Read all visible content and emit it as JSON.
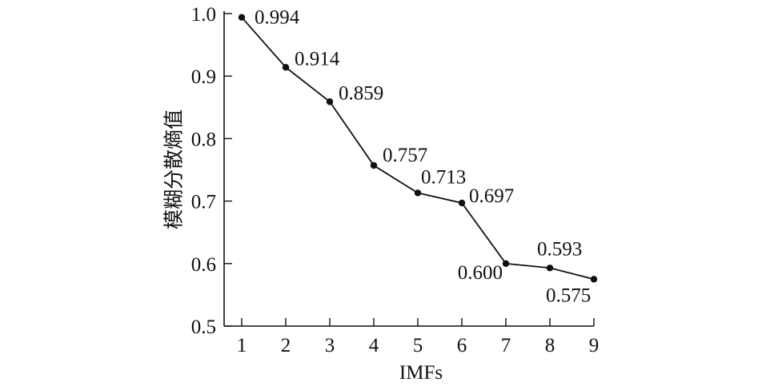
{
  "chart_data": {
    "type": "line",
    "title": "",
    "xlabel": "IMFs",
    "ylabel": "模糊分散熵值",
    "x": [
      1,
      2,
      3,
      4,
      5,
      6,
      7,
      8,
      9
    ],
    "x_tick_labels": [
      "1",
      "2",
      "3",
      "4",
      "5",
      "6",
      "7",
      "8",
      "9"
    ],
    "y_tick_labels": [
      "0.5",
      "0.6",
      "0.7",
      "0.8",
      "0.9",
      "1.0"
    ],
    "y_ticks": [
      0.5,
      0.6,
      0.7,
      0.8,
      0.9,
      1.0
    ],
    "ylim": [
      0.5,
      1.0
    ],
    "xlim": [
      1,
      9
    ],
    "grid": false,
    "series": [
      {
        "values": [
          0.994,
          0.914,
          0.859,
          0.757,
          0.713,
          0.697,
          0.6,
          0.593,
          0.575
        ],
        "data_labels": [
          "0.994",
          "0.914",
          "0.859",
          "0.757",
          "0.713",
          "0.697",
          "0.600",
          "0.593",
          "0.575"
        ]
      }
    ]
  }
}
